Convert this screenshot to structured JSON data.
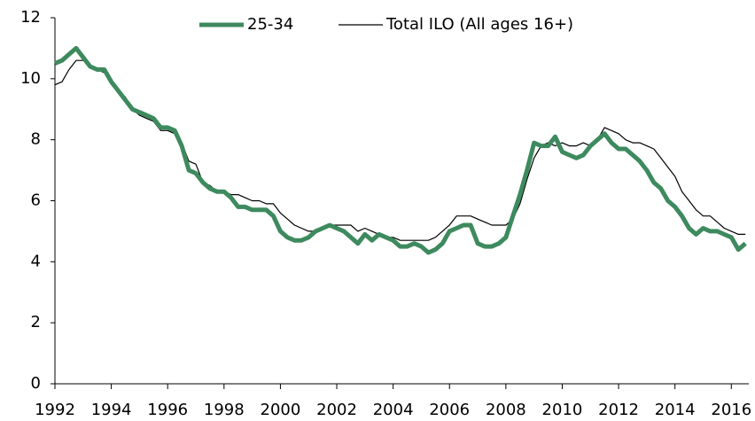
{
  "chart_data": {
    "type": "line",
    "x": [
      1992,
      1992.25,
      1992.5,
      1992.75,
      1993,
      1993.25,
      1993.5,
      1993.75,
      1994,
      1994.25,
      1994.5,
      1994.75,
      1995,
      1995.25,
      1995.5,
      1995.75,
      1996,
      1996.25,
      1996.5,
      1996.75,
      1997,
      1997.25,
      1997.5,
      1997.75,
      1998,
      1998.25,
      1998.5,
      1998.75,
      1999,
      1999.25,
      1999.5,
      1999.75,
      2000,
      2000.25,
      2000.5,
      2000.75,
      2001,
      2001.25,
      2001.5,
      2001.75,
      2002,
      2002.25,
      2002.5,
      2002.75,
      2003,
      2003.25,
      2003.5,
      2003.75,
      2004,
      2004.25,
      2004.5,
      2004.75,
      2005,
      2005.25,
      2005.5,
      2005.75,
      2006,
      2006.25,
      2006.5,
      2006.75,
      2007,
      2007.25,
      2007.5,
      2007.75,
      2008,
      2008.25,
      2008.5,
      2008.75,
      2009,
      2009.25,
      2009.5,
      2009.75,
      2010,
      2010.25,
      2010.5,
      2010.75,
      2011,
      2011.25,
      2011.5,
      2011.75,
      2012,
      2012.25,
      2012.5,
      2012.75,
      2013,
      2013.25,
      2013.5,
      2013.75,
      2014,
      2014.25,
      2014.5,
      2014.75,
      2015,
      2015.25,
      2015.5,
      2015.75,
      2016,
      2016.25,
      2016.5
    ],
    "series": [
      {
        "name": "25-34",
        "color": "#3d8a5e",
        "values": [
          10.5,
          10.6,
          10.8,
          11.0,
          10.7,
          10.4,
          10.3,
          10.3,
          9.9,
          9.6,
          9.3,
          9.0,
          8.9,
          8.8,
          8.7,
          8.4,
          8.4,
          8.3,
          7.8,
          7.0,
          6.9,
          6.6,
          6.4,
          6.3,
          6.3,
          6.1,
          5.8,
          5.8,
          5.7,
          5.7,
          5.7,
          5.5,
          5.0,
          4.8,
          4.7,
          4.7,
          4.8,
          5.0,
          5.1,
          5.2,
          5.1,
          5.0,
          4.8,
          4.6,
          4.9,
          4.7,
          4.9,
          4.8,
          4.7,
          4.5,
          4.5,
          4.6,
          4.5,
          4.3,
          4.4,
          4.6,
          5.0,
          5.1,
          5.2,
          5.2,
          4.6,
          4.5,
          4.5,
          4.6,
          4.8,
          5.5,
          6.2,
          7.0,
          7.9,
          7.8,
          7.8,
          8.1,
          7.6,
          7.5,
          7.4,
          7.5,
          7.8,
          8.0,
          8.2,
          7.9,
          7.7,
          7.7,
          7.5,
          7.3,
          7.0,
          6.6,
          6.4,
          6.0,
          5.8,
          5.5,
          5.1,
          4.9,
          5.1,
          5.0,
          5.0,
          4.9,
          4.8,
          4.4,
          4.6
        ]
      },
      {
        "name": "Total ILO (All ages 16+)",
        "color": "#000000",
        "values": [
          9.8,
          9.9,
          10.3,
          10.6,
          10.6,
          10.4,
          10.3,
          10.2,
          9.9,
          9.6,
          9.4,
          9.0,
          8.8,
          8.7,
          8.6,
          8.3,
          8.3,
          8.2,
          7.9,
          7.3,
          7.2,
          6.6,
          6.5,
          6.3,
          6.3,
          6.2,
          6.2,
          6.1,
          6.0,
          6.0,
          5.9,
          5.9,
          5.6,
          5.4,
          5.2,
          5.1,
          5.0,
          5.0,
          5.1,
          5.2,
          5.2,
          5.2,
          5.2,
          5.0,
          5.1,
          5.0,
          4.9,
          4.8,
          4.8,
          4.7,
          4.7,
          4.7,
          4.7,
          4.7,
          4.8,
          5.0,
          5.2,
          5.5,
          5.5,
          5.5,
          5.4,
          5.3,
          5.2,
          5.2,
          5.2,
          5.4,
          5.9,
          6.7,
          7.4,
          7.8,
          7.9,
          7.8,
          7.9,
          7.8,
          7.8,
          7.9,
          7.8,
          8.0,
          8.4,
          8.3,
          8.2,
          8.0,
          7.9,
          7.9,
          7.8,
          7.7,
          7.4,
          7.1,
          6.8,
          6.3,
          6.0,
          5.7,
          5.5,
          5.5,
          5.3,
          5.1,
          5.0,
          4.9,
          4.9
        ]
      }
    ],
    "xlim": [
      1992,
      2016.62
    ],
    "xticks": [
      1992,
      1994,
      1996,
      1998,
      2000,
      2002,
      2004,
      2006,
      2008,
      2010,
      2012,
      2014,
      2016
    ],
    "ylim": [
      0,
      12
    ],
    "yticks": [
      0,
      2,
      4,
      6,
      8,
      10,
      12
    ]
  }
}
